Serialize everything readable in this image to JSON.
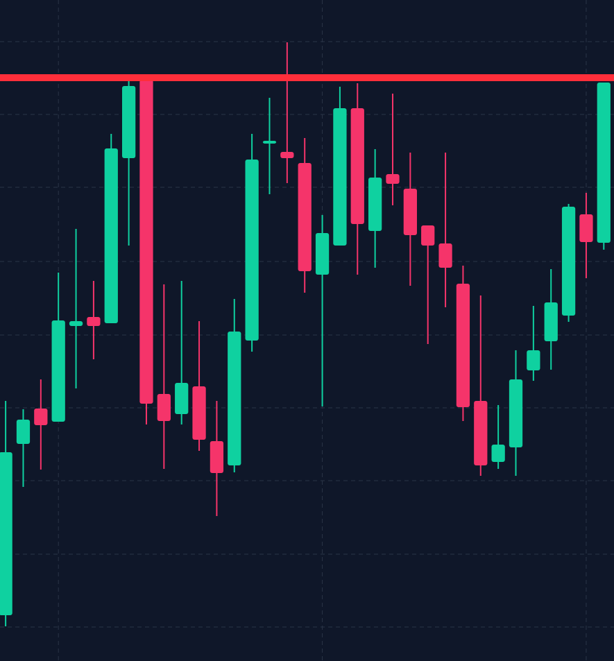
{
  "chart_data": {
    "type": "candlestick",
    "x": [
      0,
      1,
      2,
      3,
      4,
      5,
      6,
      7,
      8,
      9,
      10,
      11,
      12,
      13,
      14,
      15,
      16,
      17,
      18,
      19,
      20,
      21,
      22,
      23,
      24,
      25,
      26,
      27,
      28,
      29,
      30,
      31,
      32,
      33,
      34
    ],
    "open": [
      66,
      313,
      364,
      345,
      483,
      496,
      487,
      725,
      838,
      385,
      356,
      396,
      317,
      282,
      462,
      746,
      734,
      718,
      557,
      599,
      797,
      620,
      702,
      681,
      628,
      602,
      544,
      375,
      287,
      308,
      419,
      461,
      498,
      644,
      603
    ],
    "high": [
      375,
      363,
      406,
      560,
      623,
      548,
      760,
      838,
      841,
      543,
      548,
      490,
      375,
      522,
      760,
      812,
      892,
      754,
      643,
      828,
      833,
      738,
      818,
      733,
      628,
      733,
      570,
      527,
      369,
      448,
      512,
      565,
      659,
      675,
      834
    ],
    "low": [
      50,
      251,
      276,
      345,
      393,
      435,
      487,
      599,
      341,
      277,
      341,
      303,
      209,
      272,
      446,
      673,
      689,
      531,
      367,
      599,
      557,
      567,
      657,
      541,
      457,
      510,
      346,
      267,
      277,
      267,
      404,
      420,
      489,
      552,
      593
    ],
    "close": [
      301,
      348,
      340,
      491,
      490,
      483,
      739,
      829,
      371,
      346,
      401,
      319,
      271,
      475,
      723,
      750,
      725,
      562,
      617,
      797,
      630,
      697,
      688,
      614,
      599,
      567,
      366,
      282,
      312,
      406,
      448,
      517,
      655,
      604,
      834
    ],
    "up_color": "#0fd1a0",
    "down_color": "#f5346a",
    "hline": {
      "value": 841,
      "color": "#ff2e3a"
    },
    "xlim": [
      -0.32,
      34.58
    ],
    "xticks": [
      3,
      18,
      33
    ],
    "ylim": [
      0,
      953
    ],
    "yticks": [
      49,
      154,
      260,
      365,
      470,
      576,
      683,
      788,
      893
    ],
    "grid": true
  }
}
